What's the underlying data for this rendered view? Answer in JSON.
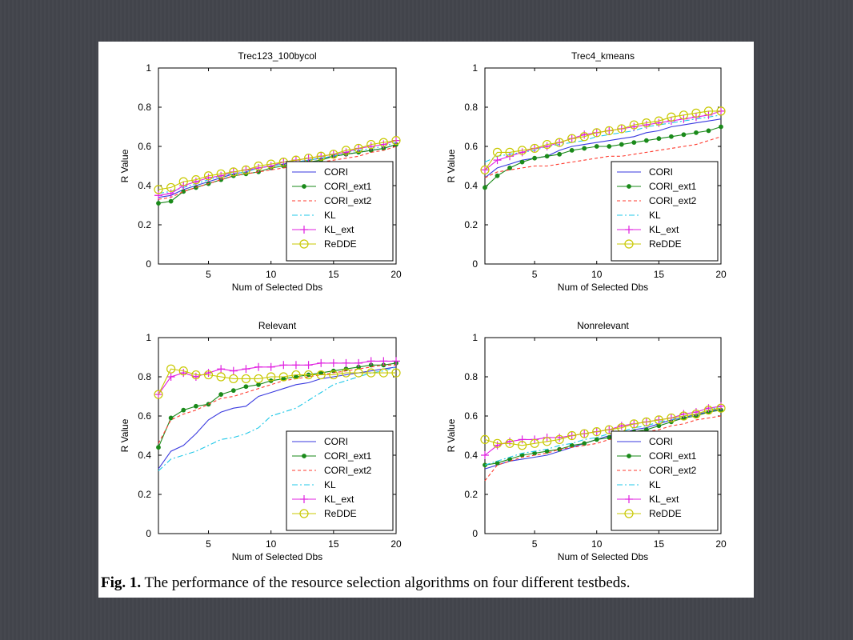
{
  "caption": {
    "label": "Fig. 1.",
    "text": " The performance of the resource selection algorithms on four different testbeds."
  },
  "legend_entries": [
    {
      "name": "CORI",
      "color": "#3a3adf",
      "dash": "",
      "marker": "none"
    },
    {
      "name": "CORI_ext1",
      "color": "#1a8a1a",
      "dash": "",
      "marker": "dot"
    },
    {
      "name": "CORI_ext2",
      "color": "#ff3b2f",
      "dash": "4,3",
      "marker": "none"
    },
    {
      "name": "KL",
      "color": "#20c8e8",
      "dash": "7,3,2,3",
      "marker": "none"
    },
    {
      "name": "KL_ext",
      "color": "#e020e0",
      "dash": "",
      "marker": "plus"
    },
    {
      "name": "ReDDE",
      "color": "#c8c800",
      "dash": "",
      "marker": "circle"
    }
  ],
  "chart_data": [
    {
      "type": "line",
      "title": "Trec123_100bycol",
      "xlabel": "Num of Selected Dbs",
      "ylabel": "R Value",
      "xlim": [
        1,
        20
      ],
      "ylim": [
        0,
        1
      ],
      "xticks": [
        5,
        10,
        15,
        20
      ],
      "yticks": [
        0,
        0.2,
        0.4,
        0.6,
        0.8,
        1
      ],
      "legend": "lower-right",
      "x": [
        1,
        2,
        3,
        4,
        5,
        6,
        7,
        8,
        9,
        10,
        11,
        12,
        13,
        14,
        15,
        16,
        17,
        18,
        19,
        20
      ],
      "series": [
        {
          "name": "CORI",
          "values": [
            0.34,
            0.35,
            0.38,
            0.4,
            0.42,
            0.44,
            0.46,
            0.47,
            0.49,
            0.5,
            0.51,
            0.52,
            0.53,
            0.54,
            0.55,
            0.56,
            0.57,
            0.58,
            0.59,
            0.61
          ]
        },
        {
          "name": "CORI_ext1",
          "values": [
            0.31,
            0.32,
            0.37,
            0.39,
            0.41,
            0.43,
            0.45,
            0.46,
            0.47,
            0.49,
            0.5,
            0.51,
            0.52,
            0.53,
            0.55,
            0.56,
            0.57,
            0.58,
            0.59,
            0.61
          ]
        },
        {
          "name": "CORI_ext2",
          "values": [
            0.33,
            0.34,
            0.37,
            0.39,
            0.41,
            0.43,
            0.45,
            0.46,
            0.47,
            0.48,
            0.49,
            0.5,
            0.51,
            0.52,
            0.53,
            0.54,
            0.55,
            0.57,
            0.58,
            0.6
          ]
        },
        {
          "name": "KL",
          "values": [
            0.36,
            0.37,
            0.39,
            0.41,
            0.43,
            0.45,
            0.46,
            0.47,
            0.49,
            0.5,
            0.51,
            0.52,
            0.53,
            0.54,
            0.55,
            0.57,
            0.58,
            0.59,
            0.6,
            0.62
          ]
        },
        {
          "name": "KL_ext",
          "values": [
            0.35,
            0.36,
            0.4,
            0.42,
            0.44,
            0.45,
            0.47,
            0.48,
            0.49,
            0.5,
            0.52,
            0.53,
            0.54,
            0.55,
            0.56,
            0.57,
            0.59,
            0.6,
            0.61,
            0.63
          ]
        },
        {
          "name": "ReDDE",
          "values": [
            0.38,
            0.39,
            0.42,
            0.43,
            0.45,
            0.46,
            0.47,
            0.48,
            0.5,
            0.51,
            0.52,
            0.53,
            0.54,
            0.55,
            0.56,
            0.58,
            0.59,
            0.61,
            0.62,
            0.63
          ]
        }
      ]
    },
    {
      "type": "line",
      "title": "Trec4_kmeans",
      "xlabel": "Num of Selected Dbs",
      "ylabel": "R Value",
      "xlim": [
        1,
        20
      ],
      "ylim": [
        0,
        1
      ],
      "xticks": [
        5,
        10,
        15,
        20
      ],
      "yticks": [
        0,
        0.2,
        0.4,
        0.6,
        0.8,
        1
      ],
      "legend": "lower-right",
      "x": [
        1,
        2,
        3,
        4,
        5,
        6,
        7,
        8,
        9,
        10,
        11,
        12,
        13,
        14,
        15,
        16,
        17,
        18,
        19,
        20
      ],
      "series": [
        {
          "name": "CORI",
          "values": [
            0.44,
            0.49,
            0.51,
            0.53,
            0.54,
            0.55,
            0.58,
            0.6,
            0.61,
            0.62,
            0.63,
            0.64,
            0.65,
            0.67,
            0.68,
            0.7,
            0.71,
            0.72,
            0.73,
            0.74
          ]
        },
        {
          "name": "CORI_ext1",
          "values": [
            0.39,
            0.45,
            0.49,
            0.52,
            0.54,
            0.55,
            0.56,
            0.58,
            0.59,
            0.6,
            0.6,
            0.61,
            0.62,
            0.63,
            0.64,
            0.65,
            0.66,
            0.67,
            0.68,
            0.7
          ]
        },
        {
          "name": "CORI_ext2",
          "values": [
            0.44,
            0.47,
            0.48,
            0.49,
            0.5,
            0.5,
            0.51,
            0.52,
            0.53,
            0.54,
            0.55,
            0.55,
            0.56,
            0.57,
            0.58,
            0.59,
            0.6,
            0.61,
            0.63,
            0.65
          ]
        },
        {
          "name": "KL",
          "values": [
            0.52,
            0.55,
            0.56,
            0.57,
            0.58,
            0.6,
            0.61,
            0.62,
            0.63,
            0.65,
            0.66,
            0.67,
            0.68,
            0.7,
            0.71,
            0.72,
            0.73,
            0.74,
            0.75,
            0.76
          ]
        },
        {
          "name": "KL_ext",
          "values": [
            0.48,
            0.53,
            0.55,
            0.57,
            0.59,
            0.6,
            0.62,
            0.64,
            0.66,
            0.67,
            0.68,
            0.69,
            0.7,
            0.71,
            0.72,
            0.73,
            0.74,
            0.75,
            0.76,
            0.78
          ]
        },
        {
          "name": "ReDDE",
          "values": [
            0.48,
            0.57,
            0.57,
            0.58,
            0.59,
            0.61,
            0.62,
            0.64,
            0.65,
            0.67,
            0.68,
            0.69,
            0.71,
            0.72,
            0.73,
            0.75,
            0.76,
            0.77,
            0.78,
            0.78
          ]
        }
      ]
    },
    {
      "type": "line",
      "title": "Relevant",
      "xlabel": "Num of Selected Dbs",
      "ylabel": "R Value",
      "xlim": [
        1,
        20
      ],
      "ylim": [
        0,
        1
      ],
      "xticks": [
        5,
        10,
        15,
        20
      ],
      "yticks": [
        0,
        0.2,
        0.4,
        0.6,
        0.8,
        1
      ],
      "legend": "lower-right",
      "x": [
        1,
        2,
        3,
        4,
        5,
        6,
        7,
        8,
        9,
        10,
        11,
        12,
        13,
        14,
        15,
        16,
        17,
        18,
        19,
        20
      ],
      "series": [
        {
          "name": "CORI",
          "values": [
            0.33,
            0.42,
            0.45,
            0.51,
            0.58,
            0.62,
            0.64,
            0.65,
            0.7,
            0.72,
            0.74,
            0.76,
            0.77,
            0.79,
            0.8,
            0.81,
            0.82,
            0.83,
            0.84,
            0.85
          ]
        },
        {
          "name": "CORI_ext1",
          "values": [
            0.44,
            0.59,
            0.63,
            0.65,
            0.66,
            0.71,
            0.73,
            0.75,
            0.76,
            0.78,
            0.79,
            0.8,
            0.81,
            0.82,
            0.83,
            0.84,
            0.85,
            0.86,
            0.86,
            0.87
          ]
        },
        {
          "name": "CORI_ext2",
          "values": [
            0.46,
            0.58,
            0.61,
            0.63,
            0.66,
            0.69,
            0.7,
            0.72,
            0.74,
            0.76,
            0.78,
            0.79,
            0.8,
            0.81,
            0.82,
            0.83,
            0.84,
            0.85,
            0.86,
            0.86
          ]
        },
        {
          "name": "KL",
          "values": [
            0.32,
            0.38,
            0.4,
            0.42,
            0.45,
            0.48,
            0.49,
            0.51,
            0.54,
            0.6,
            0.62,
            0.64,
            0.68,
            0.72,
            0.76,
            0.78,
            0.8,
            0.82,
            0.83,
            0.85
          ]
        },
        {
          "name": "KL_ext",
          "values": [
            0.71,
            0.8,
            0.82,
            0.8,
            0.82,
            0.84,
            0.83,
            0.84,
            0.85,
            0.85,
            0.86,
            0.86,
            0.86,
            0.87,
            0.87,
            0.87,
            0.87,
            0.88,
            0.88,
            0.88
          ]
        },
        {
          "name": "ReDDE",
          "values": [
            0.71,
            0.84,
            0.83,
            0.81,
            0.81,
            0.8,
            0.79,
            0.79,
            0.79,
            0.8,
            0.8,
            0.81,
            0.81,
            0.81,
            0.81,
            0.82,
            0.82,
            0.82,
            0.82,
            0.82
          ]
        }
      ]
    },
    {
      "type": "line",
      "title": "Nonrelevant",
      "xlabel": "Num of Selected Dbs",
      "ylabel": "R Value",
      "xlim": [
        1,
        20
      ],
      "ylim": [
        0,
        1
      ],
      "xticks": [
        5,
        10,
        15,
        20
      ],
      "yticks": [
        0,
        0.2,
        0.4,
        0.6,
        0.8,
        1
      ],
      "legend": "lower-right",
      "x": [
        1,
        2,
        3,
        4,
        5,
        6,
        7,
        8,
        9,
        10,
        11,
        12,
        13,
        14,
        15,
        16,
        17,
        18,
        19,
        20
      ],
      "series": [
        {
          "name": "CORI",
          "values": [
            0.33,
            0.35,
            0.37,
            0.38,
            0.39,
            0.4,
            0.42,
            0.44,
            0.46,
            0.48,
            0.5,
            0.51,
            0.53,
            0.54,
            0.56,
            0.58,
            0.59,
            0.61,
            0.62,
            0.64
          ]
        },
        {
          "name": "CORI_ext1",
          "values": [
            0.35,
            0.36,
            0.38,
            0.4,
            0.41,
            0.42,
            0.43,
            0.45,
            0.46,
            0.48,
            0.49,
            0.5,
            0.52,
            0.53,
            0.55,
            0.57,
            0.59,
            0.6,
            0.62,
            0.63
          ]
        },
        {
          "name": "CORI_ext2",
          "values": [
            0.27,
            0.35,
            0.37,
            0.39,
            0.4,
            0.41,
            0.43,
            0.44,
            0.45,
            0.46,
            0.48,
            0.49,
            0.5,
            0.52,
            0.53,
            0.55,
            0.56,
            0.58,
            0.59,
            0.6
          ]
        },
        {
          "name": "KL",
          "values": [
            0.35,
            0.37,
            0.39,
            0.41,
            0.42,
            0.43,
            0.45,
            0.46,
            0.48,
            0.49,
            0.51,
            0.52,
            0.54,
            0.55,
            0.57,
            0.58,
            0.6,
            0.61,
            0.63,
            0.65
          ]
        },
        {
          "name": "KL_ext",
          "values": [
            0.4,
            0.45,
            0.47,
            0.48,
            0.48,
            0.49,
            0.49,
            0.5,
            0.51,
            0.52,
            0.53,
            0.55,
            0.56,
            0.57,
            0.58,
            0.59,
            0.61,
            0.62,
            0.64,
            0.65
          ]
        },
        {
          "name": "ReDDE",
          "values": [
            0.48,
            0.46,
            0.46,
            0.45,
            0.46,
            0.47,
            0.48,
            0.5,
            0.51,
            0.52,
            0.53,
            0.54,
            0.56,
            0.57,
            0.58,
            0.59,
            0.6,
            0.61,
            0.63,
            0.64
          ]
        }
      ]
    }
  ]
}
